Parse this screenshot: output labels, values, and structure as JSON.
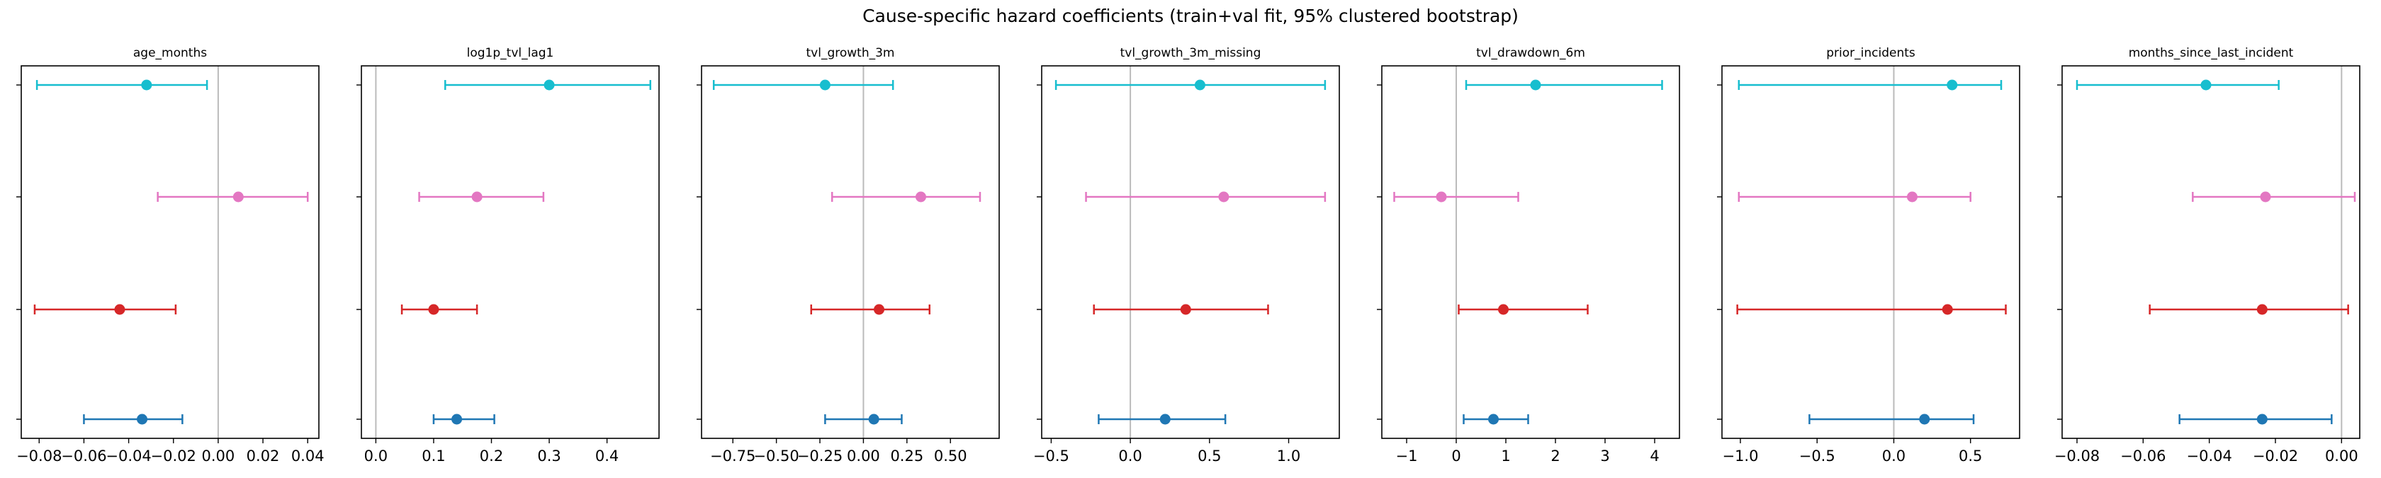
{
  "figure": {
    "suptitle": "Cause-specific hazard coefficients (train+val fit, 95% clustered bootstrap)"
  },
  "colors": {
    "series": [
      "#1f77b4",
      "#d62728",
      "#e377c2",
      "#17becf"
    ],
    "zero_line": "#bbbbbb",
    "axes": "#000000"
  },
  "chart_data": [
    {
      "type": "scatter",
      "title": "age_months",
      "xlim": [
        -0.088,
        0.045
      ],
      "xticks": [
        -0.08,
        -0.06,
        -0.04,
        -0.02,
        0.0,
        0.02,
        0.04
      ],
      "xtick_labels": [
        "−0.08",
        "−0.06",
        "−0.04",
        "−0.02",
        "0.00",
        "0.02",
        "0.04"
      ],
      "points": [
        {
          "y": 0,
          "estimate": -0.034,
          "lower": -0.06,
          "upper": -0.016
        },
        {
          "y": 1,
          "estimate": -0.044,
          "lower": -0.082,
          "upper": -0.019
        },
        {
          "y": 2,
          "estimate": 0.009,
          "lower": -0.027,
          "upper": 0.04
        },
        {
          "y": 3,
          "estimate": -0.032,
          "lower": -0.081,
          "upper": -0.005
        }
      ]
    },
    {
      "type": "scatter",
      "title": "log1p_tvl_lag1",
      "xlim": [
        -0.025,
        0.49
      ],
      "xticks": [
        0.0,
        0.1,
        0.2,
        0.3,
        0.4
      ],
      "xtick_labels": [
        "0.0",
        "0.1",
        "0.2",
        "0.3",
        "0.4"
      ],
      "points": [
        {
          "y": 0,
          "estimate": 0.14,
          "lower": 0.1,
          "upper": 0.205
        },
        {
          "y": 1,
          "estimate": 0.1,
          "lower": 0.045,
          "upper": 0.175
        },
        {
          "y": 2,
          "estimate": 0.175,
          "lower": 0.075,
          "upper": 0.29
        },
        {
          "y": 3,
          "estimate": 0.3,
          "lower": 0.12,
          "upper": 0.475
        }
      ]
    },
    {
      "type": "scatter",
      "title": "tvl_growth_3m",
      "xlim": [
        -0.93,
        0.78
      ],
      "xticks": [
        -0.75,
        -0.5,
        -0.25,
        0.0,
        0.25,
        0.5
      ],
      "xtick_labels": [
        "−0.75",
        "−0.50",
        "−0.25",
        "0.00",
        "0.25",
        "0.50"
      ],
      "points": [
        {
          "y": 0,
          "estimate": 0.06,
          "lower": -0.22,
          "upper": 0.22
        },
        {
          "y": 1,
          "estimate": 0.09,
          "lower": -0.3,
          "upper": 0.38
        },
        {
          "y": 2,
          "estimate": 0.33,
          "lower": -0.18,
          "upper": 0.67
        },
        {
          "y": 3,
          "estimate": -0.22,
          "lower": -0.86,
          "upper": 0.17
        }
      ]
    },
    {
      "type": "scatter",
      "title": "tvl_growth_3m_missing",
      "xlim": [
        -0.56,
        1.32
      ],
      "xticks": [
        -0.5,
        0.0,
        0.5,
        1.0
      ],
      "xtick_labels": [
        "−0.5",
        "0.0",
        "0.5",
        "1.0"
      ],
      "points": [
        {
          "y": 0,
          "estimate": 0.22,
          "lower": -0.2,
          "upper": 0.6
        },
        {
          "y": 1,
          "estimate": 0.35,
          "lower": -0.23,
          "upper": 0.87
        },
        {
          "y": 2,
          "estimate": 0.59,
          "lower": -0.28,
          "upper": 1.23
        },
        {
          "y": 3,
          "estimate": 0.44,
          "lower": -0.47,
          "upper": 1.23
        }
      ]
    },
    {
      "type": "scatter",
      "title": "tvl_drawdown_6m",
      "xlim": [
        -1.5,
        4.5
      ],
      "xticks": [
        -1,
        0,
        1,
        2,
        3,
        4
      ],
      "xtick_labels": [
        "−1",
        "0",
        "1",
        "2",
        "3",
        "4"
      ],
      "points": [
        {
          "y": 0,
          "estimate": 0.75,
          "lower": 0.15,
          "upper": 1.45
        },
        {
          "y": 1,
          "estimate": 0.95,
          "lower": 0.05,
          "upper": 2.65
        },
        {
          "y": 2,
          "estimate": -0.3,
          "lower": -1.25,
          "upper": 1.25
        },
        {
          "y": 3,
          "estimate": 1.6,
          "lower": 0.2,
          "upper": 4.15
        }
      ]
    },
    {
      "type": "scatter",
      "title": "prior_incidents",
      "xlim": [
        -1.12,
        0.82
      ],
      "xticks": [
        -1.0,
        -0.5,
        0.0,
        0.5
      ],
      "xtick_labels": [
        "−1.0",
        "−0.5",
        "0.0",
        "0.5"
      ],
      "points": [
        {
          "y": 0,
          "estimate": 0.2,
          "lower": -0.55,
          "upper": 0.52
        },
        {
          "y": 1,
          "estimate": 0.35,
          "lower": -1.02,
          "upper": 0.73
        },
        {
          "y": 2,
          "estimate": 0.12,
          "lower": -1.01,
          "upper": 0.5
        },
        {
          "y": 3,
          "estimate": 0.38,
          "lower": -1.01,
          "upper": 0.7
        }
      ]
    },
    {
      "type": "scatter",
      "title": "months_since_last_incident",
      "xlim": [
        -0.0845,
        0.0055
      ],
      "xticks": [
        -0.08,
        -0.06,
        -0.04,
        -0.02,
        0.0
      ],
      "xtick_labels": [
        "−0.08",
        "−0.06",
        "−0.04",
        "−0.02",
        "0.00"
      ],
      "points": [
        {
          "y": 0,
          "estimate": -0.024,
          "lower": -0.049,
          "upper": -0.003
        },
        {
          "y": 1,
          "estimate": -0.024,
          "lower": -0.058,
          "upper": 0.002
        },
        {
          "y": 2,
          "estimate": -0.023,
          "lower": -0.045,
          "upper": 0.004
        },
        {
          "y": 3,
          "estimate": -0.041,
          "lower": -0.08,
          "upper": -0.019
        }
      ]
    }
  ]
}
